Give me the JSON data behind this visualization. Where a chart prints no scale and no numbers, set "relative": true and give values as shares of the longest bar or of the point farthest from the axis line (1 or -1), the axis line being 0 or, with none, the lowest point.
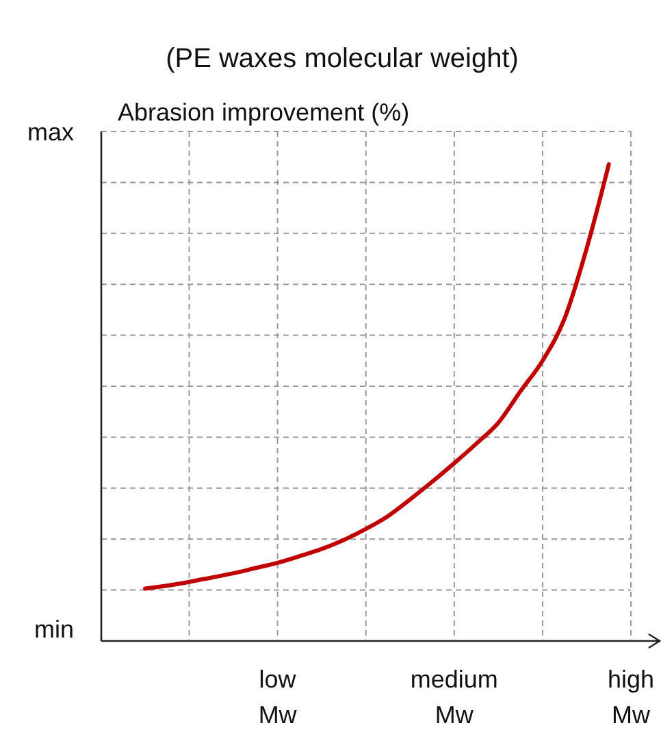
{
  "chart_data": {
    "type": "line",
    "title": "(PE waxes molecular weight)",
    "ylabel": "Abrasion improvement (%)",
    "relative": true,
    "categories": [
      null,
      null,
      null,
      null,
      null,
      null,
      "low Mw",
      null,
      null,
      null,
      null,
      null,
      null,
      null,
      "medium Mw",
      null,
      null,
      null,
      null,
      null,
      null,
      null,
      "high Mw"
    ],
    "series": [
      {
        "color": "#c00000",
        "values": [
          0.11,
          0.116,
          0.124,
          0.133,
          0.142,
          0.153,
          0.164,
          0.178,
          0.193,
          0.212,
          0.235,
          0.262,
          0.297,
          0.334,
          0.373,
          0.414,
          0.458,
          0.524,
          0.588,
          0.677,
          0.824,
          1,
          null
        ]
      }
    ],
    "annotations": [
      "min",
      "max"
    ],
    "grid": true,
    "marker": "none",
    "line_style": "solid"
  }
}
